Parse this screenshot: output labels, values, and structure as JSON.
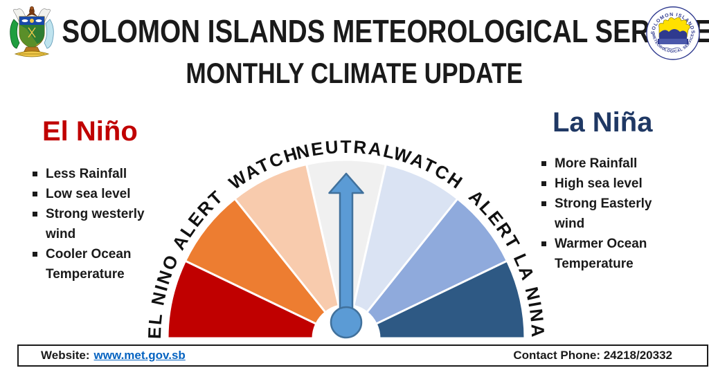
{
  "header": {
    "title": "SOLOMON ISLANDS METEOROLOGICAL SERVICE",
    "subtitle": "MONTHLY CLIMATE UPDATE",
    "left_logo": {
      "icon": "solomon-islands-coat-of-arms"
    },
    "right_logo": {
      "icon": "met-service-seal",
      "top_text": "SOLOMON ISLANDS",
      "bottom_text": "METEOROLOGICAL SERVICE"
    }
  },
  "panels": {
    "el_nino": {
      "heading": "El Niño",
      "heading_color": "#C00000",
      "items": [
        "Less Rainfall",
        "Low sea level",
        "Strong westerly\nwind",
        "Cooler Ocean\nTemperature"
      ]
    },
    "la_nina": {
      "heading": "La Niña",
      "heading_color": "#1F3864",
      "items": [
        "More Rainfall",
        "High sea level",
        "Strong Easterly\nwind",
        "Warmer Ocean\nTemperature"
      ]
    }
  },
  "gauge": {
    "type": "semicircle-dial",
    "pointer_state": "NEUTRAL",
    "needle_color": "#5B9BD5",
    "needle_border": "#41719C",
    "label_color": "#111111",
    "segments": [
      {
        "label": "EL NINO",
        "color": "#C00000"
      },
      {
        "label": "ALERT",
        "color": "#ED7D31"
      },
      {
        "label": "WATCH",
        "color": "#F8CBAD"
      },
      {
        "label": "NEUTRAL",
        "color": "#F0F0F0"
      },
      {
        "label": "WATCH",
        "color": "#DAE3F3"
      },
      {
        "label": "ALERT",
        "color": "#8FAADC"
      },
      {
        "label": "LA NINA",
        "color": "#2E5984"
      }
    ]
  },
  "footer": {
    "website_label": "Website:",
    "website_url": "www.met.gov.sb",
    "contact": "Contact Phone: 24218/20332"
  }
}
